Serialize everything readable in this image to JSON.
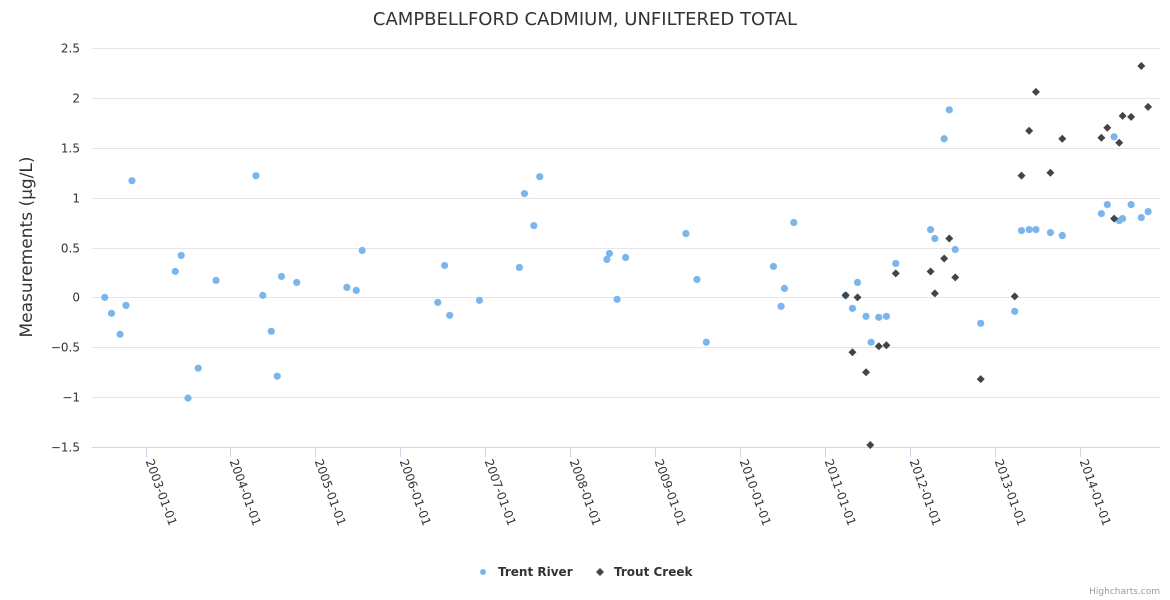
{
  "chart_data": {
    "type": "scatter",
    "title": "CAMPBELLFORD CADMIUM, UNFILTERED TOTAL",
    "xlabel": "",
    "ylabel": "Measurements (µg/L)",
    "xlim": [
      2002.37,
      2014.94
    ],
    "ylim": [
      -1.5,
      2.5
    ],
    "yticks": [
      -1.5,
      -1,
      -0.5,
      0,
      0.5,
      1,
      1.5,
      2,
      2.5
    ],
    "ytick_labels": [
      "−1.5",
      "−1",
      "−0.5",
      "0",
      "0.5",
      "1",
      "1.5",
      "2",
      "2.5"
    ],
    "xticks": [
      2003,
      2004,
      2005,
      2006,
      2007,
      2008,
      2009,
      2010,
      2011,
      2012,
      2013,
      2014
    ],
    "xtick_labels": [
      "2003-01-01",
      "2004-01-01",
      "2005-01-01",
      "2006-01-01",
      "2007-01-01",
      "2008-01-01",
      "2009-01-01",
      "2010-01-01",
      "2011-01-01",
      "2012-01-01",
      "2013-01-01",
      "2014-01-01"
    ],
    "grid": true,
    "legend_position": "bottom-center",
    "series": [
      {
        "name": "Trent River",
        "color": "#7cb5ec",
        "marker": "circle",
        "points": [
          [
            2002.52,
            0.0
          ],
          [
            2002.6,
            -0.16
          ],
          [
            2002.7,
            -0.37
          ],
          [
            2002.77,
            -0.08
          ],
          [
            2002.84,
            1.17
          ],
          [
            2003.35,
            0.26
          ],
          [
            2003.42,
            0.42
          ],
          [
            2003.5,
            -1.01
          ],
          [
            2003.62,
            -0.71
          ],
          [
            2003.83,
            0.17
          ],
          [
            2004.3,
            1.22
          ],
          [
            2004.38,
            0.02
          ],
          [
            2004.48,
            -0.34
          ],
          [
            2004.55,
            -0.79
          ],
          [
            2004.6,
            0.21
          ],
          [
            2004.78,
            0.15
          ],
          [
            2005.37,
            0.1
          ],
          [
            2005.48,
            0.07
          ],
          [
            2005.55,
            0.47
          ],
          [
            2006.44,
            -0.05
          ],
          [
            2006.52,
            0.32
          ],
          [
            2006.58,
            -0.18
          ],
          [
            2006.93,
            -0.03
          ],
          [
            2007.4,
            0.3
          ],
          [
            2007.46,
            1.04
          ],
          [
            2007.57,
            0.72
          ],
          [
            2007.64,
            1.21
          ],
          [
            2008.43,
            0.38
          ],
          [
            2008.46,
            0.44
          ],
          [
            2008.55,
            -0.02
          ],
          [
            2008.65,
            0.4
          ],
          [
            2009.36,
            0.64
          ],
          [
            2009.49,
            0.18
          ],
          [
            2009.6,
            -0.45
          ],
          [
            2010.39,
            0.31
          ],
          [
            2010.48,
            -0.09
          ],
          [
            2010.52,
            0.09
          ],
          [
            2010.63,
            0.75
          ],
          [
            2011.24,
            0.02
          ],
          [
            2011.32,
            -0.11
          ],
          [
            2011.38,
            0.15
          ],
          [
            2011.48,
            -0.19
          ],
          [
            2011.54,
            -0.45
          ],
          [
            2011.63,
            -0.2
          ],
          [
            2011.72,
            -0.19
          ],
          [
            2011.83,
            0.34
          ],
          [
            2012.24,
            0.68
          ],
          [
            2012.29,
            0.59
          ],
          [
            2012.4,
            1.59
          ],
          [
            2012.46,
            1.88
          ],
          [
            2012.53,
            0.48
          ],
          [
            2012.83,
            -0.26
          ],
          [
            2013.23,
            -0.14
          ],
          [
            2013.31,
            0.67
          ],
          [
            2013.4,
            0.68
          ],
          [
            2013.48,
            0.68
          ],
          [
            2013.65,
            0.65
          ],
          [
            2013.79,
            0.62
          ],
          [
            2014.25,
            0.84
          ],
          [
            2014.32,
            0.93
          ],
          [
            2014.4,
            1.61
          ],
          [
            2014.46,
            0.77
          ],
          [
            2014.5,
            0.79
          ],
          [
            2014.6,
            0.93
          ],
          [
            2014.72,
            0.8
          ],
          [
            2014.8,
            0.86
          ]
        ]
      },
      {
        "name": "Trout Creek",
        "color": "#434348",
        "marker": "diamond",
        "points": [
          [
            2011.24,
            0.02
          ],
          [
            2011.32,
            -0.55
          ],
          [
            2011.38,
            0.0
          ],
          [
            2011.48,
            -0.75
          ],
          [
            2011.53,
            -1.48
          ],
          [
            2011.63,
            -0.49
          ],
          [
            2011.72,
            -0.48
          ],
          [
            2011.83,
            0.24
          ],
          [
            2012.24,
            0.26
          ],
          [
            2012.29,
            0.04
          ],
          [
            2012.4,
            0.39
          ],
          [
            2012.46,
            0.59
          ],
          [
            2012.53,
            0.2
          ],
          [
            2012.83,
            -0.82
          ],
          [
            2013.23,
            0.01
          ],
          [
            2013.31,
            1.22
          ],
          [
            2013.4,
            1.67
          ],
          [
            2013.48,
            2.06
          ],
          [
            2013.65,
            1.25
          ],
          [
            2013.79,
            1.59
          ],
          [
            2014.25,
            1.6
          ],
          [
            2014.32,
            1.7
          ],
          [
            2014.4,
            0.79
          ],
          [
            2014.46,
            1.55
          ],
          [
            2014.5,
            1.82
          ],
          [
            2014.6,
            1.81
          ],
          [
            2014.72,
            2.32
          ],
          [
            2014.8,
            1.91
          ]
        ]
      }
    ]
  },
  "credits": "Highcharts.com"
}
